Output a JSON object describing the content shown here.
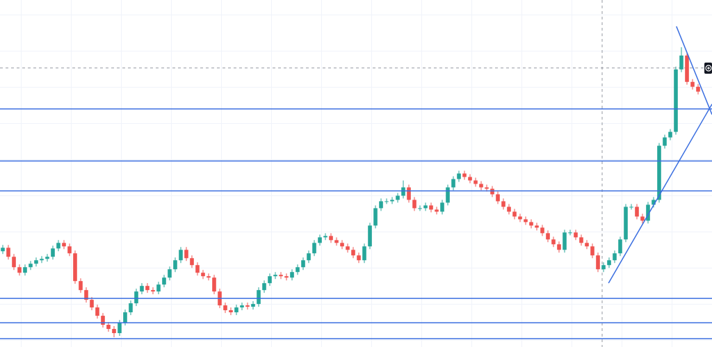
{
  "chart_data": {
    "type": "candlestick",
    "xlim": [
      -0.5,
      127.5
    ],
    "ylim": [
      0,
      500
    ],
    "up_color": "#26a69a",
    "down_color": "#ef5350",
    "open": [
      138,
      143,
      130,
      115,
      107,
      115,
      120,
      125,
      127,
      130,
      142,
      150,
      145,
      135,
      95,
      82,
      68,
      57,
      45,
      32,
      26,
      20,
      35,
      50,
      63,
      80,
      88,
      82,
      80,
      90,
      100,
      112,
      125,
      140,
      128,
      118,
      107,
      102,
      100,
      80,
      60,
      53,
      50,
      57,
      60,
      58,
      62,
      82,
      92,
      102,
      104,
      102,
      100,
      108,
      115,
      125,
      135,
      150,
      158,
      160,
      154,
      150,
      145,
      140,
      132,
      125,
      145,
      175,
      200,
      210,
      210,
      212,
      218,
      230,
      212,
      200,
      200,
      204,
      198,
      195,
      208,
      230,
      242,
      250,
      245,
      240,
      235,
      230,
      228,
      220,
      210,
      202,
      195,
      188,
      184,
      180,
      175,
      172,
      164,
      155,
      148,
      140,
      165,
      165,
      158,
      150,
      145,
      132,
      112,
      118,
      125,
      135,
      155,
      202,
      202,
      188,
      182,
      205,
      212,
      290,
      302,
      310,
      400,
      420,
      382,
      375
    ],
    "high": [
      147,
      147,
      134,
      119,
      119,
      124,
      129,
      131,
      134,
      146,
      154,
      154,
      149,
      139,
      99,
      86,
      72,
      61,
      49,
      36,
      30,
      39,
      54,
      67,
      84,
      92,
      92,
      86,
      94,
      104,
      116,
      129,
      144,
      144,
      132,
      122,
      111,
      106,
      104,
      84,
      64,
      57,
      61,
      64,
      64,
      66,
      86,
      96,
      106,
      108,
      108,
      106,
      112,
      119,
      129,
      139,
      154,
      162,
      164,
      164,
      158,
      154,
      149,
      144,
      136,
      149,
      179,
      204,
      214,
      214,
      216,
      222,
      240,
      234,
      216,
      204,
      208,
      208,
      202,
      212,
      234,
      246,
      254,
      254,
      249,
      244,
      239,
      234,
      232,
      224,
      214,
      206,
      199,
      192,
      188,
      184,
      179,
      176,
      168,
      159,
      152,
      169,
      169,
      169,
      162,
      154,
      149,
      136,
      122,
      129,
      139,
      159,
      206,
      206,
      206,
      192,
      209,
      216,
      294,
      306,
      314,
      404,
      432,
      424,
      386,
      379
    ],
    "low": [
      134,
      126,
      111,
      103,
      103,
      111,
      116,
      121,
      123,
      126,
      138,
      141,
      131,
      91,
      78,
      64,
      53,
      41,
      28,
      22,
      14,
      16,
      31,
      46,
      59,
      76,
      78,
      76,
      76,
      86,
      96,
      108,
      121,
      124,
      114,
      103,
      98,
      96,
      76,
      56,
      49,
      46,
      46,
      53,
      54,
      54,
      58,
      78,
      88,
      98,
      98,
      96,
      96,
      104,
      111,
      121,
      131,
      146,
      154,
      150,
      146,
      141,
      136,
      128,
      121,
      121,
      141,
      171,
      196,
      206,
      206,
      208,
      214,
      208,
      196,
      196,
      196,
      194,
      191,
      191,
      204,
      226,
      238,
      241,
      236,
      231,
      226,
      224,
      216,
      206,
      198,
      191,
      184,
      180,
      176,
      171,
      168,
      160,
      151,
      144,
      136,
      136,
      161,
      154,
      146,
      141,
      128,
      108,
      108,
      114,
      121,
      131,
      151,
      198,
      184,
      178,
      178,
      201,
      208,
      286,
      298,
      306,
      396,
      378,
      371,
      364
    ],
    "close": [
      143,
      130,
      115,
      107,
      115,
      120,
      125,
      127,
      130,
      142,
      150,
      145,
      135,
      95,
      82,
      68,
      57,
      45,
      32,
      26,
      20,
      35,
      50,
      63,
      80,
      88,
      82,
      80,
      90,
      100,
      112,
      125,
      140,
      128,
      118,
      107,
      102,
      100,
      80,
      60,
      53,
      50,
      57,
      60,
      58,
      62,
      82,
      92,
      102,
      104,
      102,
      100,
      108,
      115,
      125,
      135,
      150,
      158,
      160,
      154,
      150,
      145,
      140,
      132,
      125,
      145,
      175,
      200,
      210,
      210,
      212,
      218,
      230,
      212,
      200,
      200,
      204,
      198,
      195,
      208,
      230,
      242,
      250,
      245,
      240,
      235,
      230,
      228,
      220,
      210,
      202,
      195,
      188,
      184,
      180,
      175,
      172,
      164,
      155,
      148,
      140,
      165,
      165,
      158,
      150,
      145,
      132,
      112,
      118,
      125,
      135,
      155,
      202,
      202,
      188,
      182,
      205,
      212,
      290,
      302,
      310,
      400,
      420,
      382,
      375,
      368
    ],
    "levels": [
      343,
      268,
      225,
      70,
      35,
      12
    ],
    "level_color": "#3a6ee0",
    "trend_lines": [
      {
        "x": [
          108.9,
          127.5
        ],
        "y": [
          92,
          350
        ]
      },
      {
        "x": [
          121.1,
          127.5
        ],
        "y": [
          462,
          335
        ]
      }
    ],
    "trend_color": "#3a6ee0",
    "crosshair": {
      "x": 107.75,
      "y": 402
    }
  }
}
